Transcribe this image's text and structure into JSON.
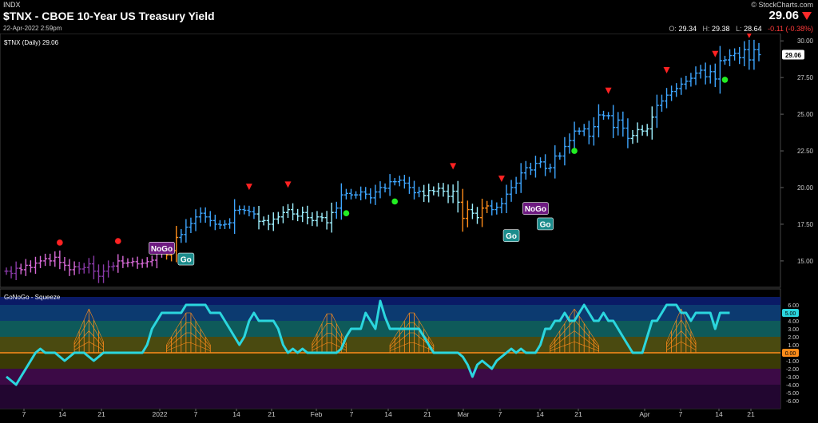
{
  "header": {
    "index": "INDX",
    "title": "$TNX - CBOE 10-Year US Treasury Yield",
    "datetime": "22-Apr-2022 2:59pm",
    "copyright": "© StockCharts.com",
    "last": "29.06",
    "open_label": "O:",
    "open": "29.34",
    "high_label": "H:",
    "high": "29.38",
    "low_label": "L:",
    "low": "28.64",
    "change": "-0.11 (-0.38%)"
  },
  "colors": {
    "strong_up": "#3ea6ff",
    "weak_up": "#9ef0ff",
    "neutral": "#ff8c1a",
    "weak_down": "#d86ad8",
    "strong_down": "#8a3aa8",
    "go_dot": "#22ee22",
    "nogo_dot": "#ff2222",
    "down_triangle": "#ff2222",
    "oscillator": "#2bd6de",
    "zero_line": "#ff8c1a"
  },
  "chart_data": [
    {
      "type": "bar",
      "title": "$TNX (Daily) 29.06",
      "last_label": "29.06",
      "ylim": [
        13.2,
        30.5
      ],
      "yticks": [
        "15.00",
        "17.50",
        "20.00",
        "22.50",
        "25.00",
        "27.50",
        "30.00"
      ],
      "xtick_labels": [
        "7",
        "14",
        "21",
        "2022",
        "7",
        "14",
        "21",
        "Feb",
        "7",
        "14",
        "21",
        "Mar",
        "7",
        "14",
        "21",
        "Apr",
        "7",
        "14",
        "21"
      ],
      "close": [
        14.3,
        14.15,
        14.5,
        14.4,
        14.7,
        14.55,
        14.85,
        15.0,
        15.15,
        15.0,
        15.25,
        14.9,
        14.7,
        14.4,
        14.6,
        14.45,
        14.55,
        14.8,
        14.3,
        13.95,
        14.3,
        14.6,
        14.65,
        15.0,
        14.85,
        14.9,
        14.95,
        14.8,
        14.85,
        14.95,
        15.05,
        15.55,
        15.5,
        15.4,
        15.7,
        16.6,
        16.8,
        17.3,
        17.55,
        18.0,
        18.25,
        18.0,
        17.75,
        17.5,
        17.45,
        17.5,
        17.6,
        18.45,
        18.5,
        18.45,
        18.35,
        18.2,
        17.7,
        17.75,
        17.5,
        17.85,
        18.0,
        18.3,
        18.5,
        18.2,
        18.05,
        18.3,
        17.95,
        17.75,
        18.0,
        17.95,
        17.6,
        18.3,
        18.6,
        19.5,
        19.6,
        19.5,
        19.5,
        19.7,
        19.55,
        19.3,
        19.7,
        20.0,
        19.95,
        20.4,
        20.4,
        20.5,
        20.3,
        20.0,
        19.65,
        19.75,
        19.45,
        19.8,
        19.75,
        19.95,
        19.75,
        19.4,
        19.75,
        19.0,
        17.9,
        18.5,
        18.25,
        17.95,
        18.6,
        18.75,
        18.5,
        18.65,
        18.9,
        19.55,
        20.0,
        20.3,
        21.0,
        21.35,
        21.2,
        21.65,
        21.75,
        21.3,
        21.35,
        22.15,
        22.15,
        22.8,
        23.2,
        23.85,
        23.85,
        24.0,
        23.5,
        24.15,
        24.95,
        24.9,
        24.9,
        24.1,
        24.6,
        24.05,
        23.35,
        23.55,
        23.95,
        23.85,
        24.0,
        24.8,
        25.6,
        25.9,
        26.3,
        26.55,
        26.75,
        27.05,
        27.25,
        27.45,
        27.8,
        28.0,
        27.55,
        27.9,
        27.4,
        28.65,
        28.7,
        29.0,
        29.15,
        28.85,
        29.4,
        28.7,
        29.4,
        29.06
      ],
      "regimes": [
        {
          "from": 0,
          "to": 2,
          "regime": "strong_down"
        },
        {
          "from": 3,
          "to": 14,
          "regime": "weak_down"
        },
        {
          "from": 15,
          "to": 22,
          "regime": "strong_down"
        },
        {
          "from": 23,
          "to": 32,
          "regime": "weak_down"
        },
        {
          "from": 33,
          "to": 35,
          "regime": "neutral"
        },
        {
          "from": 36,
          "to": 51,
          "regime": "strong_up"
        },
        {
          "from": 52,
          "to": 67,
          "regime": "weak_up"
        },
        {
          "from": 68,
          "to": 85,
          "regime": "strong_up"
        },
        {
          "from": 86,
          "to": 93,
          "regime": "weak_up"
        },
        {
          "from": 94,
          "to": 95,
          "regime": "neutral"
        },
        {
          "from": 96,
          "to": 97,
          "regime": "weak_up"
        },
        {
          "from": 98,
          "to": 99,
          "regime": "neutral"
        },
        {
          "from": 100,
          "to": 128,
          "regime": "strong_up"
        },
        {
          "from": 129,
          "to": 133,
          "regime": "weak_up"
        },
        {
          "from": 134,
          "to": 155,
          "regime": "strong_up"
        }
      ],
      "markers": [
        {
          "i": 11,
          "type": "nogo_dot"
        },
        {
          "i": 23,
          "type": "nogo_dot"
        },
        {
          "i": 50,
          "type": "down_triangle"
        },
        {
          "i": 58,
          "type": "down_triangle"
        },
        {
          "i": 70,
          "type": "go_dot"
        },
        {
          "i": 80,
          "type": "go_dot"
        },
        {
          "i": 92,
          "type": "down_triangle"
        },
        {
          "i": 102,
          "type": "down_triangle"
        },
        {
          "i": 117,
          "type": "go_dot"
        },
        {
          "i": 124,
          "type": "down_triangle"
        },
        {
          "i": 136,
          "type": "down_triangle"
        },
        {
          "i": 148,
          "type": "go_dot"
        },
        {
          "i": 146,
          "type": "down_triangle"
        },
        {
          "i": 153,
          "type": "down_triangle"
        }
      ],
      "labels": [
        {
          "i": 32,
          "text": "NoGo",
          "kind": "nogo",
          "y": 15.85
        },
        {
          "i": 37,
          "text": "Go",
          "kind": "go",
          "y": 15.1
        },
        {
          "i": 104,
          "text": "Go",
          "kind": "go",
          "y": 16.7
        },
        {
          "i": 109,
          "text": "NoGo",
          "kind": "nogo",
          "y": 18.55
        },
        {
          "i": 111,
          "text": "Go",
          "kind": "go",
          "y": 17.5
        }
      ]
    },
    {
      "type": "line",
      "title": "GoNoGo - Squeeze",
      "last_label": "5.00",
      "zero_label": "0.00",
      "ylim": [
        -7,
        7
      ],
      "yticks": [
        "-6.00",
        "-5.00",
        "-4.00",
        "-3.00",
        "-2.00",
        "-1.00",
        "1.00",
        "2.00",
        "3.00",
        "4.00",
        "6.00"
      ],
      "series": [
        {
          "values": [
            -3.0,
            -3.5,
            -4.0,
            -3.0,
            -2.0,
            -1.0,
            0.0,
            0.5,
            0.0,
            0.0,
            0.0,
            -0.5,
            -1.0,
            -0.5,
            0.0,
            0.0,
            0.0,
            -0.5,
            -1.0,
            -0.5,
            0.0,
            0.0,
            0.0,
            0.0,
            0.0,
            0.0,
            0.0,
            0.0,
            0.0,
            1.0,
            3.0,
            4.0,
            5.0,
            5.0,
            5.0,
            5.0,
            5.0,
            6.0,
            6.0,
            6.0,
            6.0,
            6.0,
            5.0,
            5.0,
            5.0,
            4.0,
            3.0,
            2.0,
            1.0,
            2.0,
            4.0,
            5.0,
            4.0,
            4.0,
            4.0,
            4.0,
            3.0,
            1.0,
            0.0,
            0.5,
            0.0,
            0.5,
            0.0,
            0.0,
            0.0,
            0.0,
            0.0,
            0.0,
            0.0,
            0.5,
            2.0,
            3.0,
            3.0,
            3.0,
            5.0,
            4.0,
            3.0,
            6.5,
            4.5,
            3.0,
            3.0,
            3.0,
            3.0,
            3.0,
            3.0,
            3.0,
            2.0,
            1.0,
            0.0,
            0.0,
            0.0,
            0.0,
            0.0,
            0.0,
            -0.5,
            -1.5,
            -3.0,
            -1.5,
            -1.0,
            -1.5,
            -2.0,
            -1.0,
            -0.5,
            0.0,
            0.5,
            0.0,
            0.5,
            0.0,
            0.0,
            0.0,
            1.0,
            3.0,
            3.0,
            4.0,
            4.0,
            5.0,
            4.0,
            4.0,
            5.0,
            6.0,
            5.0,
            4.0,
            4.0,
            5.0,
            4.0,
            4.0,
            3.0,
            2.0,
            1.0,
            0.0,
            0.0,
            0.0,
            2.0,
            4.0,
            4.0,
            5.0,
            6.0,
            6.0,
            6.0,
            5.0,
            5.0,
            4.0,
            5.0,
            5.0,
            5.0,
            5.0,
            3.0,
            5.0,
            5.0,
            5.0
          ]
        },
        {
          "squeeze_clusters": [
            [
              14,
              20
            ],
            [
              33,
              42
            ],
            [
              63,
              70
            ],
            [
              79,
              88
            ],
            [
              112,
              122
            ],
            [
              136,
              142
            ]
          ]
        }
      ]
    }
  ]
}
